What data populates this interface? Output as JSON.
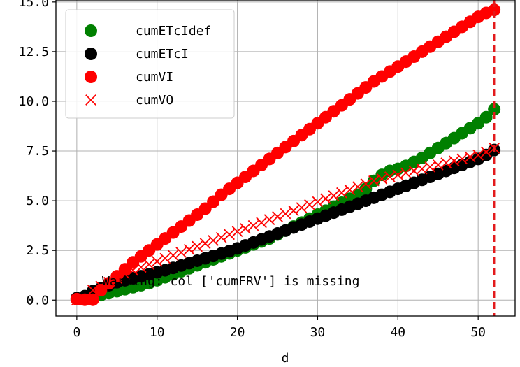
{
  "chart_data": {
    "type": "scatter",
    "xlabel": "d",
    "ylabel": "",
    "xlim": [
      -2.6,
      54.6
    ],
    "ylim": [
      -0.8,
      15.1
    ],
    "x_ticks": [
      0,
      10,
      20,
      30,
      40,
      50
    ],
    "y_ticks": [
      0.0,
      2.5,
      5.0,
      7.5,
      10.0,
      12.5,
      15.0
    ],
    "x_tick_labels": [
      "0",
      "10",
      "20",
      "30",
      "40",
      "50"
    ],
    "y_tick_labels": [
      "0.0",
      "2.5",
      "5.0",
      "7.5",
      "10.0",
      "12.5",
      "15.0"
    ],
    "grid": true,
    "legend_position": "top-left",
    "annotation": "Warning: col ['cumFRV'] is missing",
    "vline": {
      "x": 52,
      "color": "#e31a1c",
      "style": "dashed"
    },
    "x": [
      0,
      1,
      2,
      3,
      4,
      5,
      6,
      7,
      8,
      9,
      10,
      11,
      12,
      13,
      14,
      15,
      16,
      17,
      18,
      19,
      20,
      21,
      22,
      23,
      24,
      25,
      26,
      27,
      28,
      29,
      30,
      31,
      32,
      33,
      34,
      35,
      36,
      37,
      38,
      39,
      40,
      41,
      42,
      43,
      44,
      45,
      46,
      47,
      48,
      49,
      50,
      51,
      52
    ],
    "series": [
      {
        "name": "cumETcIdef",
        "marker": "circle",
        "color": "#008000",
        "values": [
          0.05,
          0.1,
          0.15,
          0.25,
          0.35,
          0.45,
          0.55,
          0.65,
          0.75,
          0.85,
          1.0,
          1.15,
          1.3,
          1.45,
          1.6,
          1.75,
          1.9,
          2.05,
          2.2,
          2.35,
          2.5,
          2.65,
          2.8,
          2.95,
          3.1,
          3.3,
          3.5,
          3.7,
          3.9,
          4.1,
          4.3,
          4.5,
          4.7,
          4.9,
          5.1,
          5.3,
          5.6,
          6.0,
          6.3,
          6.5,
          6.6,
          6.75,
          6.95,
          7.15,
          7.4,
          7.65,
          7.9,
          8.15,
          8.4,
          8.65,
          8.9,
          9.2,
          9.6
        ]
      },
      {
        "name": "cumETcI",
        "marker": "circle",
        "color": "#000000",
        "values": [
          0.1,
          0.2,
          0.45,
          0.6,
          0.75,
          0.9,
          1.0,
          1.1,
          1.2,
          1.3,
          1.4,
          1.5,
          1.62,
          1.74,
          1.86,
          1.98,
          2.1,
          2.22,
          2.34,
          2.46,
          2.6,
          2.75,
          2.9,
          3.05,
          3.2,
          3.35,
          3.5,
          3.65,
          3.8,
          3.95,
          4.1,
          4.25,
          4.4,
          4.55,
          4.7,
          4.85,
          5.0,
          5.15,
          5.3,
          5.45,
          5.6,
          5.75,
          5.9,
          6.05,
          6.2,
          6.35,
          6.5,
          6.65,
          6.8,
          6.95,
          7.1,
          7.3,
          7.55
        ]
      },
      {
        "name": "cumVI",
        "marker": "circle",
        "color": "#ff0000",
        "values": [
          0.05,
          0.02,
          0.02,
          0.5,
          0.85,
          1.2,
          1.55,
          1.9,
          2.2,
          2.5,
          2.8,
          3.1,
          3.4,
          3.7,
          4.0,
          4.3,
          4.6,
          4.95,
          5.3,
          5.6,
          5.9,
          6.2,
          6.5,
          6.8,
          7.1,
          7.4,
          7.7,
          8.0,
          8.3,
          8.6,
          8.9,
          9.2,
          9.5,
          9.8,
          10.1,
          10.4,
          10.7,
          11.0,
          11.25,
          11.5,
          11.75,
          12.0,
          12.25,
          12.5,
          12.75,
          13.0,
          13.25,
          13.5,
          13.75,
          14.0,
          14.25,
          14.45,
          14.6
        ]
      },
      {
        "name": "cumVO",
        "marker": "x",
        "color": "#ff0000",
        "values": [
          0.0,
          0.0,
          0.5,
          0.7,
          0.9,
          1.1,
          1.3,
          1.5,
          1.65,
          1.8,
          1.95,
          2.1,
          2.25,
          2.4,
          2.55,
          2.7,
          2.85,
          3.0,
          3.15,
          3.3,
          3.45,
          3.6,
          3.75,
          3.9,
          4.05,
          4.2,
          4.35,
          4.5,
          4.65,
          4.8,
          4.95,
          5.1,
          5.25,
          5.4,
          5.55,
          5.7,
          5.85,
          6.0,
          6.1,
          6.2,
          6.3,
          6.4,
          6.5,
          6.6,
          6.7,
          6.8,
          6.9,
          7.0,
          7.1,
          7.2,
          7.3,
          7.45,
          7.65
        ]
      }
    ]
  },
  "colors": {
    "grid": "#b0b0b0",
    "axis": "#000000",
    "background": "#ffffff"
  }
}
